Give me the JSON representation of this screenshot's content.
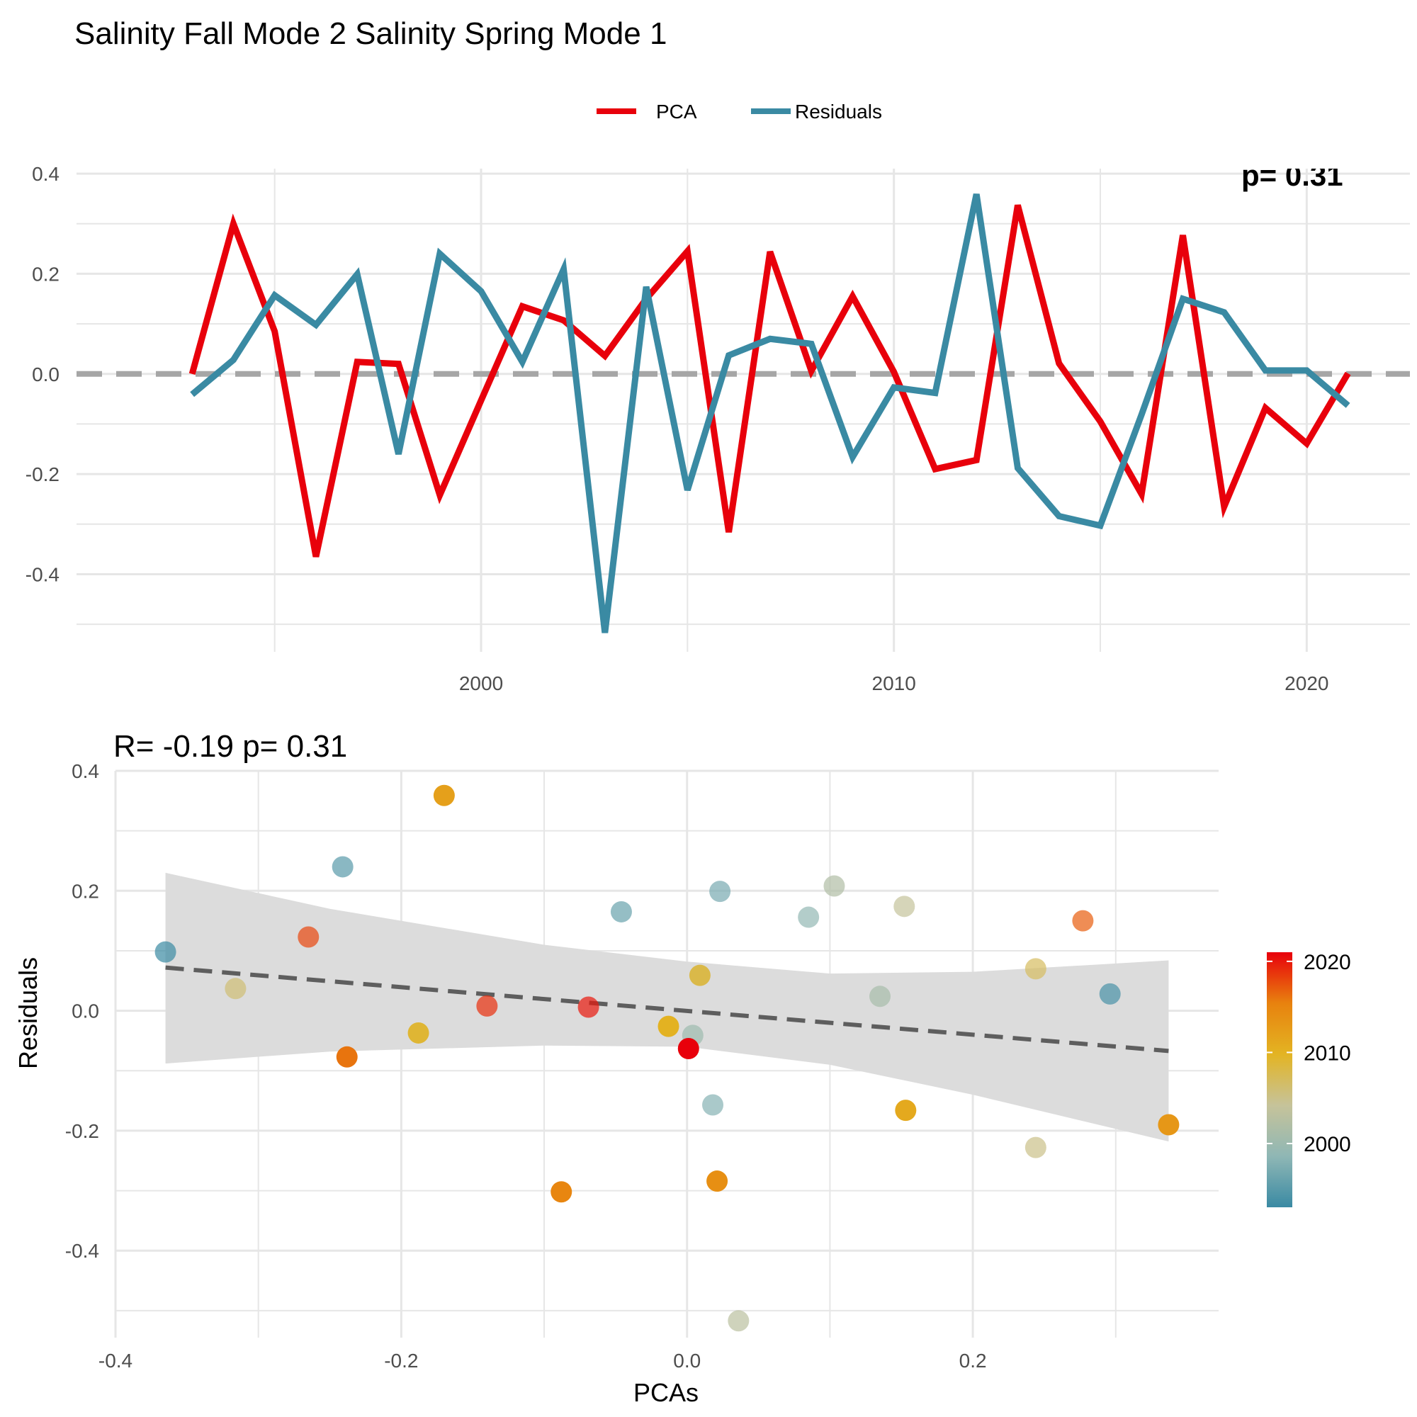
{
  "title": "Salinity Fall Mode 2 Salinity Spring Mode 1",
  "colors": {
    "pca": "#E8000B",
    "residuals": "#3A8AA3",
    "zero_line": "#A6A6A6",
    "grid": "#E6E6E6",
    "ribbon": "#DCDCDC",
    "fit_line": "#5E5E5E",
    "gradient": [
      "#3A8AA3",
      "#8FB7B5",
      "#C6C39A",
      "#E3B423",
      "#E8820E",
      "#E8000B"
    ]
  },
  "chart_data": [
    {
      "type": "line",
      "legend": {
        "position": "top",
        "items": [
          "PCA",
          "Residuals"
        ]
      },
      "top_right_annotation": "p= 0.31",
      "x": [
        1993,
        1994,
        1995,
        1996,
        1997,
        1998,
        1999,
        2000,
        2001,
        2002,
        2003,
        2004,
        2005,
        2006,
        2007,
        2008,
        2009,
        2010,
        2011,
        2012,
        2013,
        2014,
        2015,
        2016,
        2017,
        2018,
        2019,
        2020,
        2021
      ],
      "series": [
        {
          "name": "PCA",
          "values": [
            0.0,
            0.3,
            0.085,
            -0.365,
            0.024,
            0.02,
            -0.242,
            -0.053,
            0.135,
            0.107,
            0.036,
            0.15,
            0.245,
            -0.316,
            0.244,
            0.006,
            0.155,
            0.004,
            -0.19,
            -0.172,
            0.337,
            0.021,
            -0.095,
            -0.24,
            0.277,
            -0.265,
            -0.068,
            -0.139,
            0.001
          ]
        },
        {
          "name": "Residuals",
          "values": [
            -0.041,
            0.028,
            0.157,
            0.098,
            0.199,
            -0.16,
            0.24,
            0.165,
            0.024,
            0.209,
            -0.517,
            0.174,
            -0.232,
            0.037,
            0.07,
            0.06,
            -0.166,
            -0.027,
            -0.038,
            0.359,
            -0.188,
            -0.284,
            -0.303,
            -0.081,
            0.15,
            0.123,
            0.007,
            0.007,
            -0.063
          ]
        }
      ],
      "xticks": [
        2000,
        2010,
        2020
      ],
      "xtick_labels": [
        "2000",
        "2010",
        "2020"
      ],
      "yticks": [
        -0.4,
        -0.2,
        0.0,
        0.2,
        0.4
      ],
      "ytick_labels": [
        "-0.4",
        "-0.2",
        "0.0",
        "0.2",
        "0.4"
      ],
      "xlim": [
        1990.2,
        2022.5
      ],
      "ylim": [
        -0.555,
        0.41
      ],
      "grid": true,
      "zero_reference_line": 0
    },
    {
      "type": "scatter",
      "subtitle": "R= -0.19  p= 0.31",
      "xlabel": "PCAs",
      "ylabel": "Residuals",
      "xticks": [
        -0.4,
        -0.2,
        0.0,
        0.2
      ],
      "xtick_labels": [
        "-0.4",
        "-0.2",
        "0.0",
        "0.2"
      ],
      "yticks": [
        -0.4,
        -0.2,
        0.0,
        0.2,
        0.4
      ],
      "ytick_labels": [
        "-0.4",
        "-0.2",
        "0.0",
        "0.2",
        "0.4"
      ],
      "xlim": [
        -0.4,
        0.372
      ],
      "ylim": [
        -0.545,
        0.4
      ],
      "grid": true,
      "points": [
        {
          "year": 1993,
          "x": -0.365,
          "y": 0.098
        },
        {
          "year": 1994,
          "x": 0.296,
          "y": 0.028
        },
        {
          "year": 1995,
          "x": -0.241,
          "y": 0.24
        },
        {
          "year": 1996,
          "x": -0.046,
          "y": 0.165
        },
        {
          "year": 1997,
          "x": 0.023,
          "y": 0.199
        },
        {
          "year": 1998,
          "x": 0.018,
          "y": -0.157
        },
        {
          "year": 1999,
          "x": 0.085,
          "y": 0.156
        },
        {
          "year": 2000,
          "x": 0.004,
          "y": -0.041
        },
        {
          "year": 2001,
          "x": 0.135,
          "y": 0.024
        },
        {
          "year": 2002,
          "x": 0.103,
          "y": 0.208
        },
        {
          "year": 2003,
          "x": 0.036,
          "y": -0.517
        },
        {
          "year": 2004,
          "x": 0.152,
          "y": 0.174
        },
        {
          "year": 2005,
          "x": 0.244,
          "y": -0.228
        },
        {
          "year": 2006,
          "x": -0.316,
          "y": 0.037
        },
        {
          "year": 2007,
          "x": 0.244,
          "y": 0.07
        },
        {
          "year": 2008,
          "x": 0.009,
          "y": 0.059
        },
        {
          "year": 2009,
          "x": -0.188,
          "y": -0.037
        },
        {
          "year": 2010,
          "x": -0.013,
          "y": -0.026
        },
        {
          "year": 2011,
          "x": 0.153,
          "y": -0.166
        },
        {
          "year": 2012,
          "x": -0.17,
          "y": 0.359
        },
        {
          "year": 2013,
          "x": 0.337,
          "y": -0.19
        },
        {
          "year": 2014,
          "x": 0.021,
          "y": -0.284
        },
        {
          "year": 2015,
          "x": -0.088,
          "y": -0.302
        },
        {
          "year": 2016,
          "x": -0.238,
          "y": -0.077
        },
        {
          "year": 2017,
          "x": 0.277,
          "y": 0.15
        },
        {
          "year": 2018,
          "x": -0.265,
          "y": 0.123
        },
        {
          "year": 2019,
          "x": -0.14,
          "y": 0.008
        },
        {
          "year": 2020,
          "x": -0.069,
          "y": 0.006
        },
        {
          "year": 2021,
          "x": 0.001,
          "y": -0.063
        }
      ],
      "fit_line": {
        "x": [
          -0.365,
          0.337
        ],
        "y": [
          0.072,
          -0.067
        ]
      },
      "confidence_band": {
        "x": [
          -0.365,
          -0.25,
          -0.1,
          0.0,
          0.1,
          0.2,
          0.337
        ],
        "upper": [
          0.23,
          0.17,
          0.11,
          0.082,
          0.062,
          0.065,
          0.084
        ],
        "lower": [
          -0.088,
          -0.068,
          -0.058,
          -0.06,
          -0.09,
          -0.14,
          -0.218
        ]
      },
      "colorbar": {
        "range": [
          1993,
          2021
        ],
        "ticks": [
          2000,
          2010,
          2020
        ],
        "tick_labels": [
          "2000",
          "2010",
          "2020"
        ]
      }
    }
  ]
}
